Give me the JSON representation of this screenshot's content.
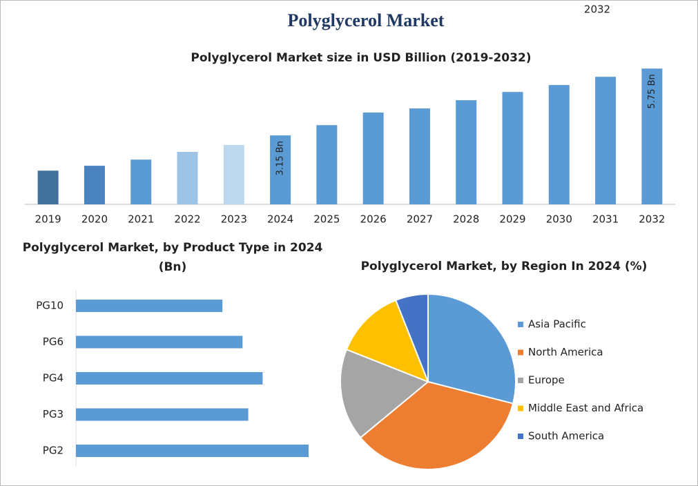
{
  "header": {
    "title": "Polyglycerol Market",
    "corner_label": "2032"
  },
  "chart_data": [
    {
      "type": "bar",
      "title": "Polyglycerol Market size in USD Billion (2019-2032)",
      "categories": [
        "2019",
        "2020",
        "2021",
        "2022",
        "2023",
        "2024",
        "2025",
        "2026",
        "2027",
        "2028",
        "2029",
        "2030",
        "2031",
        "2032"
      ],
      "values": [
        1.78,
        1.97,
        2.21,
        2.51,
        2.78,
        3.15,
        3.55,
        4.04,
        4.2,
        4.52,
        4.84,
        5.11,
        5.43,
        5.75
      ],
      "value_labels": [
        null,
        null,
        null,
        null,
        null,
        "3.15 Bn",
        null,
        null,
        null,
        null,
        null,
        null,
        null,
        "5.75 Bn"
      ],
      "colors": [
        "#41719c",
        "#4a83c0",
        "#5b9bd5",
        "#9dc3e6",
        "#bdd7ee",
        "#5b9bd5",
        "#5b9bd5",
        "#5b9bd5",
        "#5b9bd5",
        "#5b9bd5",
        "#5b9bd5",
        "#5b9bd5",
        "#5b9bd5",
        "#5b9bd5"
      ],
      "ylim": [
        0.47,
        6.0
      ]
    },
    {
      "type": "hbar",
      "title": "Polyglycerol Market, by Product Type in 2024 (Bn)",
      "categories": [
        "PG10",
        "PG6",
        "PG4",
        "PG3",
        "PG2"
      ],
      "values": [
        0.51,
        0.58,
        0.65,
        0.6,
        0.81
      ],
      "color": "#5b9bd5",
      "xlim": [
        0,
        1
      ]
    },
    {
      "type": "pie",
      "title": "Polyglycerol Market, by Region In 2024 (%)",
      "categories": [
        "Asia Pacific",
        "North America",
        "Europe",
        "Middle East and Africa",
        "South America"
      ],
      "values": [
        29,
        35,
        17,
        13,
        6
      ],
      "colors": [
        "#5b9bd5",
        "#ed7d31",
        "#a5a5a5",
        "#ffc000",
        "#4472c4"
      ]
    }
  ]
}
